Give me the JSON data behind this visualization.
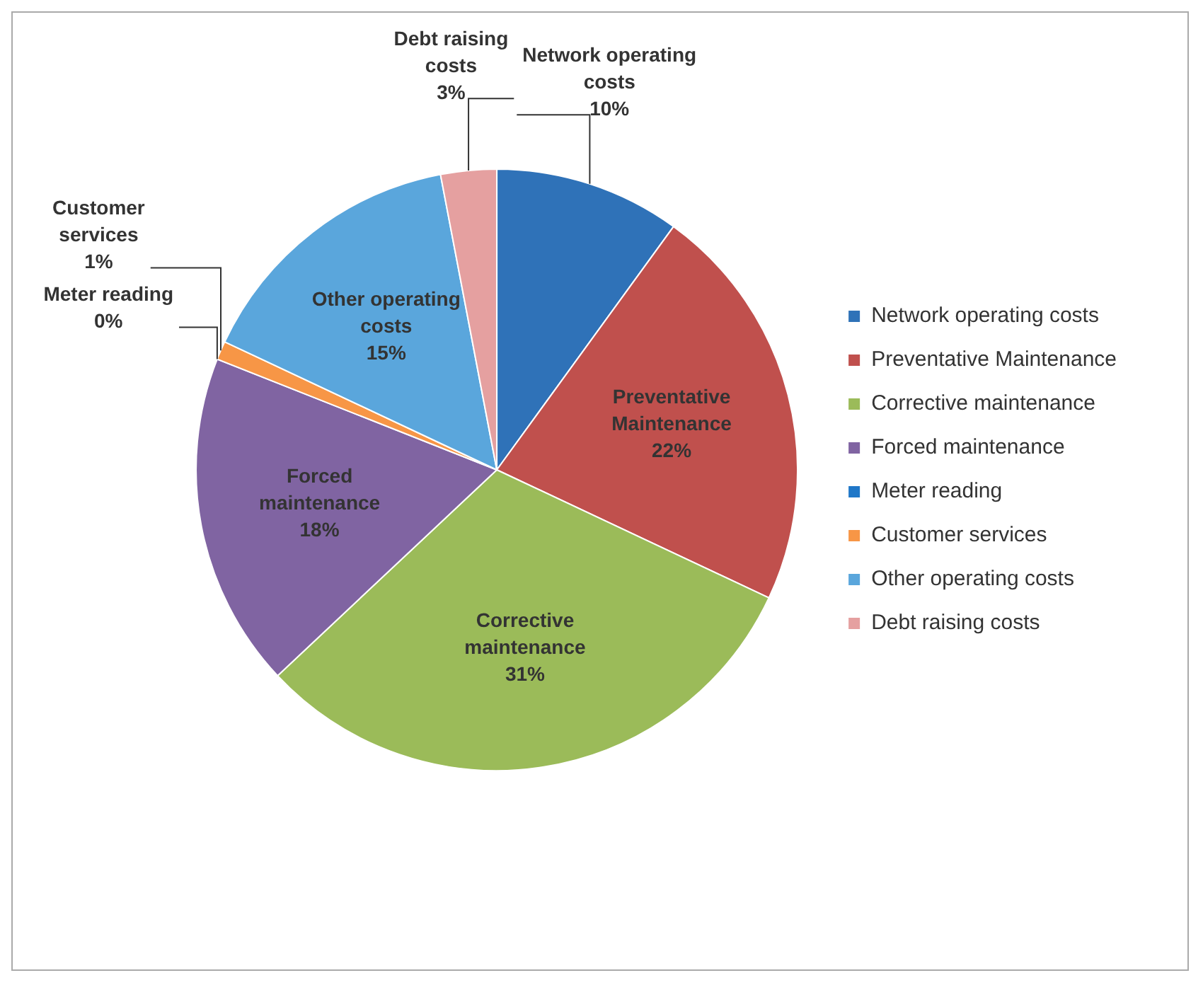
{
  "chart_data": {
    "type": "pie",
    "categories": [
      "Network operating costs",
      "Preventative Maintenance",
      "Corrective maintenance",
      "Forced maintenance",
      "Meter reading",
      "Customer services",
      "Other operating costs",
      "Debt raising costs"
    ],
    "values": [
      10,
      22,
      31,
      18,
      0,
      1,
      15,
      3
    ],
    "value_labels": [
      "10%",
      "22%",
      "31%",
      "18%",
      "0%",
      "1%",
      "15%",
      "3%"
    ],
    "colors": [
      "#2f72b8",
      "#c0504d",
      "#9bbb59",
      "#8064a2",
      "#1f77c8",
      "#f79646",
      "#5aa6dc",
      "#e5a0a0"
    ],
    "legend": "right"
  }
}
